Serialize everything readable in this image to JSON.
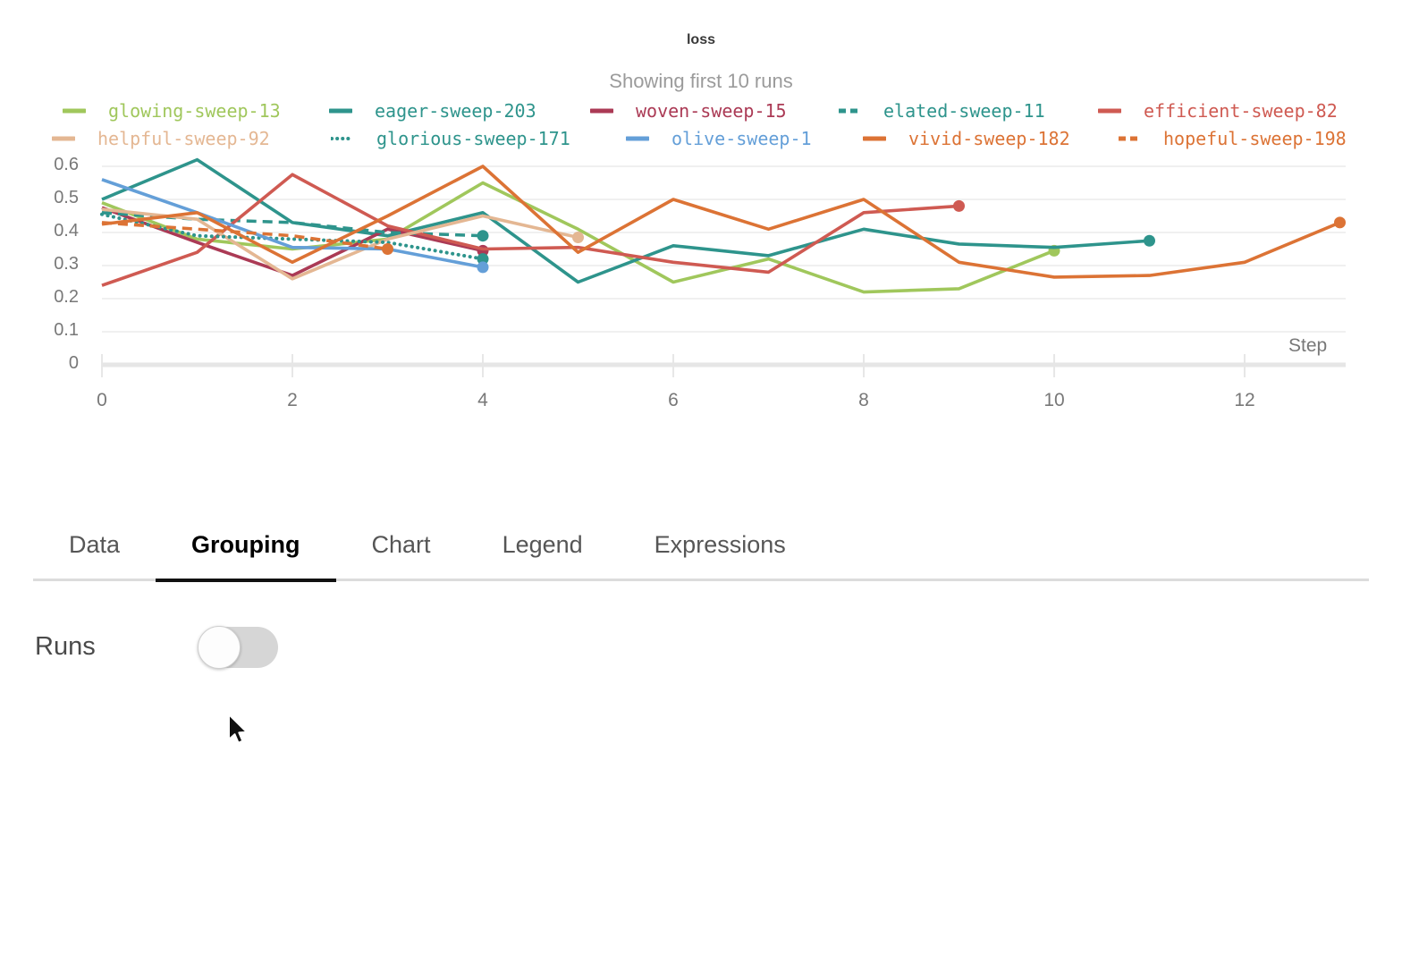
{
  "chart": {
    "title": "loss",
    "subtitle": "Showing first 10 runs",
    "xlabel": "Step",
    "y_tick_labels": [
      "0",
      "0.1",
      "0.2",
      "0.3",
      "0.4",
      "0.5",
      "0.6"
    ],
    "x_tick_labels": [
      "0",
      "2",
      "4",
      "6",
      "8",
      "10",
      "12"
    ]
  },
  "chart_data": {
    "type": "line",
    "title": "loss",
    "subtitle": "Showing first 10 runs",
    "xlabel": "Step",
    "xlim": [
      0,
      13.1
    ],
    "ylim": [
      0,
      0.62
    ],
    "grid": true,
    "legend_position": "top",
    "series": [
      {
        "name": "glowing-sweep-13",
        "color": "#a0c75c",
        "style": "solid",
        "x": [
          0,
          1,
          2,
          3,
          4,
          5,
          6,
          7,
          8,
          9,
          10
        ],
        "y": [
          0.49,
          0.38,
          0.35,
          0.38,
          0.55,
          0.41,
          0.25,
          0.32,
          0.22,
          0.23,
          0.345
        ]
      },
      {
        "name": "eager-sweep-203",
        "color": "#2e948c",
        "style": "solid",
        "x": [
          0,
          1,
          2,
          3,
          4,
          5,
          6,
          7,
          8,
          9,
          10,
          11
        ],
        "y": [
          0.5,
          0.62,
          0.43,
          0.39,
          0.46,
          0.25,
          0.36,
          0.33,
          0.41,
          0.365,
          0.355,
          0.375
        ]
      },
      {
        "name": "woven-sweep-15",
        "color": "#ab3a55",
        "style": "solid",
        "x": [
          0,
          1,
          2,
          3,
          4
        ],
        "y": [
          0.475,
          0.37,
          0.27,
          0.41,
          0.345
        ]
      },
      {
        "name": "elated-sweep-11",
        "color": "#2e948c",
        "style": "dashed",
        "x": [
          0,
          1,
          2,
          3,
          4
        ],
        "y": [
          0.46,
          0.44,
          0.43,
          0.4,
          0.39
        ]
      },
      {
        "name": "efficient-sweep-82",
        "color": "#cf5a52",
        "style": "solid",
        "x": [
          0,
          1,
          2,
          3,
          4,
          5,
          6,
          7,
          8,
          9
        ],
        "y": [
          0.24,
          0.34,
          0.575,
          0.42,
          0.35,
          0.355,
          0.31,
          0.28,
          0.46,
          0.48
        ]
      },
      {
        "name": "helpful-sweep-92",
        "color": "#e4b793",
        "style": "solid",
        "x": [
          0,
          1,
          2,
          3,
          4,
          5
        ],
        "y": [
          0.47,
          0.44,
          0.26,
          0.38,
          0.45,
          0.385
        ]
      },
      {
        "name": "glorious-sweep-171",
        "color": "#2e948c",
        "style": "dotted",
        "x": [
          0,
          1,
          2,
          3,
          4
        ],
        "y": [
          0.455,
          0.39,
          0.38,
          0.37,
          0.32
        ]
      },
      {
        "name": "olive-sweep-1",
        "color": "#649fd8",
        "style": "solid",
        "x": [
          0,
          1,
          2,
          3,
          4
        ],
        "y": [
          0.56,
          0.46,
          0.355,
          0.35,
          0.295
        ]
      },
      {
        "name": "vivid-sweep-182",
        "color": "#dc7335",
        "style": "solid",
        "x": [
          0,
          1,
          2,
          3,
          4,
          5,
          6,
          7,
          8,
          9,
          10,
          11,
          12,
          13
        ],
        "y": [
          0.425,
          0.46,
          0.31,
          0.45,
          0.6,
          0.34,
          0.5,
          0.41,
          0.5,
          0.31,
          0.265,
          0.27,
          0.31,
          0.43
        ]
      },
      {
        "name": "hopeful-sweep-198",
        "color": "#dc7335",
        "style": "dashed",
        "x": [
          0,
          1,
          2,
          3
        ],
        "y": [
          0.43,
          0.41,
          0.39,
          0.35
        ]
      }
    ]
  },
  "tabs": {
    "items": [
      "Data",
      "Grouping",
      "Chart",
      "Legend",
      "Expressions"
    ],
    "active": "Grouping"
  },
  "grouping_panel": {
    "runs_label": "Runs",
    "runs_toggle_on": false
  }
}
